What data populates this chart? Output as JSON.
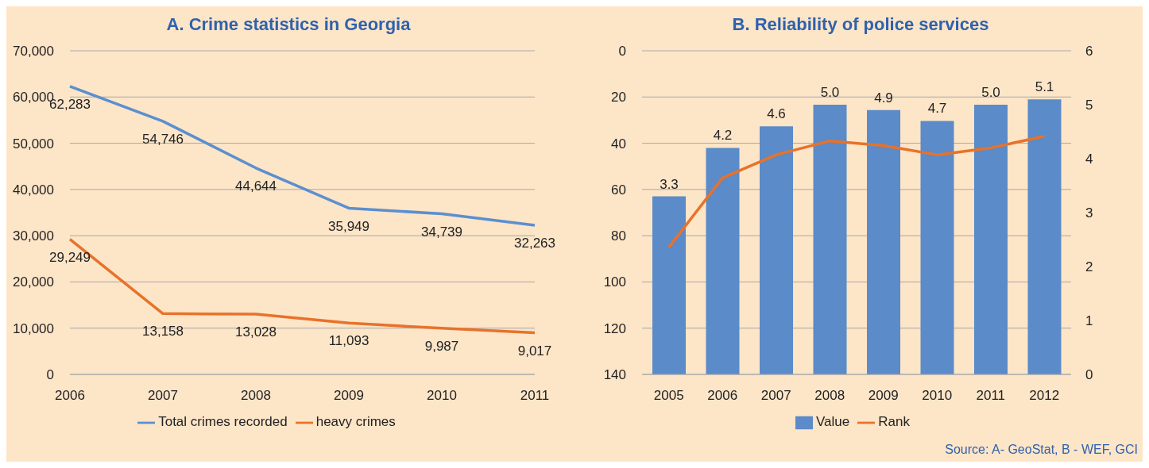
{
  "chart_data": [
    {
      "type": "line",
      "title": "A. Crime statistics in Georgia",
      "categories": [
        "2006",
        "2007",
        "2008",
        "2009",
        "2010",
        "2011"
      ],
      "series": [
        {
          "name": "Total crimes recorded",
          "color": "#5b8fd0",
          "values": [
            62283,
            54746,
            44644,
            35949,
            34739,
            32263
          ],
          "value_labels": [
            "62,283",
            "54,746",
            "44,644",
            "35,949",
            "34,739",
            "32,263"
          ]
        },
        {
          "name": "heavy crimes",
          "color": "#e8722a",
          "values": [
            29249,
            13158,
            13028,
            11093,
            9987,
            9017
          ],
          "value_labels": [
            "29,249",
            "13,158",
            "13,028",
            "11,093",
            "9,987",
            "9,017"
          ]
        }
      ],
      "ylim": [
        0,
        70000
      ],
      "yticks": [
        0,
        {
          "value": 10000,
          "label": "10,000"
        },
        {
          "value": 20000,
          "label": "20,000"
        },
        {
          "value": 30000,
          "label": "30,000"
        },
        {
          "value": 40000,
          "label": "40,000"
        },
        {
          "value": 50000,
          "label": "50,000"
        },
        {
          "value": 60000,
          "label": "60,000"
        },
        {
          "value": 70000,
          "label": "70,000"
        }
      ],
      "grid": "y",
      "legend": "bottom",
      "marker": "none"
    },
    {
      "type": "bar",
      "title": "B. Reliability of police services",
      "categories": [
        "2005",
        "2006",
        "2007",
        "2008",
        "2009",
        "2010",
        "2011",
        "2012"
      ],
      "series": [
        {
          "name": "Value",
          "color": "#5b8bc8",
          "axis": "y2",
          "values": [
            3.3,
            4.2,
            4.6,
            5.0,
            4.9,
            4.7,
            5.0,
            5.1
          ],
          "value_labels": [
            "3.3",
            "4.2",
            "4.6",
            "5.0",
            "4.9",
            "4.7",
            "5.0",
            "5.1"
          ]
        },
        {
          "name": "Rank",
          "type": "line",
          "color": "#e8722a",
          "axis": "y",
          "values": [
            85,
            55,
            45,
            39,
            41,
            45,
            42,
            37
          ]
        }
      ],
      "ylim": [
        140,
        0
      ],
      "yticks": [
        0,
        20,
        40,
        60,
        80,
        100,
        120,
        140
      ],
      "y2lim": [
        0,
        6
      ],
      "y2ticks": [
        0,
        1,
        2,
        3,
        4,
        5,
        6
      ],
      "grid": "y",
      "legend": "bottom",
      "marker": "none",
      "annotations": [
        "Source: A- GeoStat, B - WEF, GCI"
      ]
    }
  ]
}
